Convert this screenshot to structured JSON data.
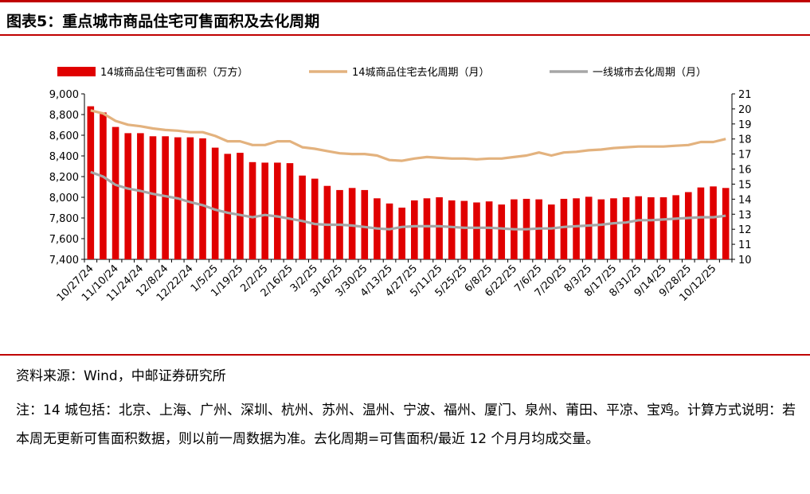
{
  "header": {
    "title": "图表5：重点城市商品住宅可售面积及去化周期"
  },
  "chart_data": {
    "type": "bar",
    "legend": {
      "placement": "top",
      "items": [
        "14城商品住宅可售面积（万方）",
        "14城商品住宅去化周期（月）",
        "一线城市去化周期（月）"
      ]
    },
    "categories": [
      "10/27/24",
      "11/3/24",
      "11/10/24",
      "11/17/24",
      "11/24/24",
      "12/1/24",
      "12/8/24",
      "12/15/24",
      "12/22/24",
      "12/29/24",
      "1/5/25",
      "1/12/25",
      "1/19/25",
      "1/26/25",
      "2/2/25",
      "2/9/25",
      "2/16/25",
      "2/23/25",
      "3/2/25",
      "3/9/25",
      "3/16/25",
      "3/23/25",
      "3/30/25",
      "4/6/25",
      "4/13/25",
      "4/20/25",
      "4/27/25",
      "5/4/25",
      "5/11/25",
      "5/18/25",
      "5/25/25",
      "6/1/25",
      "6/8/25",
      "6/15/25",
      "6/22/25",
      "6/29/25",
      "7/6/25",
      "7/13/25",
      "7/20/25",
      "7/27/25",
      "8/3/25",
      "8/10/25",
      "8/17/25",
      "8/24/25",
      "8/31/25",
      "9/7/25",
      "9/14/25",
      "9/21/25",
      "9/28/25",
      "10/5/25",
      "10/12/25",
      "10/19/25"
    ],
    "x_tick_labels": [
      "10/27/24",
      "11/10/24",
      "11/24/24",
      "12/8/24",
      "12/22/24",
      "1/5/25",
      "1/19/25",
      "2/2/25",
      "2/16/25",
      "3/2/25",
      "3/16/25",
      "3/30/25",
      "4/13/25",
      "4/27/25",
      "5/11/25",
      "5/25/25",
      "6/8/25",
      "6/22/25",
      "7/6/25",
      "7/20/25",
      "8/3/25",
      "8/17/25",
      "8/31/25",
      "9/14/25",
      "9/28/25",
      "10/12/25"
    ],
    "series": [
      {
        "name": "14城商品住宅可售面积（万方）",
        "type": "bar",
        "axis": "left",
        "color": "#E00000",
        "values": [
          8880,
          8820,
          8680,
          8620,
          8620,
          8590,
          8590,
          8580,
          8580,
          8570,
          8480,
          8420,
          8430,
          8340,
          8335,
          8335,
          8330,
          8210,
          8180,
          8110,
          8070,
          8090,
          8070,
          7990,
          7940,
          7900,
          7970,
          7990,
          8000,
          7970,
          7965,
          7950,
          7960,
          7930,
          7980,
          7985,
          7980,
          7930,
          7985,
          7990,
          8005,
          7980,
          7990,
          8000,
          8010,
          8000,
          8000,
          8020,
          8050,
          8095,
          8105,
          8090
        ]
      },
      {
        "name": "14城商品住宅去化周期（月）",
        "type": "line",
        "axis": "right",
        "color": "#E3B27E",
        "values": [
          19.9,
          19.7,
          19.2,
          18.95,
          18.85,
          18.7,
          18.6,
          18.55,
          18.45,
          18.45,
          18.2,
          17.85,
          17.85,
          17.6,
          17.6,
          17.85,
          17.85,
          17.45,
          17.35,
          17.2,
          17.05,
          17.0,
          17.0,
          16.9,
          16.6,
          16.55,
          16.7,
          16.8,
          16.75,
          16.7,
          16.7,
          16.65,
          16.7,
          16.7,
          16.8,
          16.9,
          17.1,
          16.9,
          17.1,
          17.15,
          17.25,
          17.3,
          17.4,
          17.45,
          17.5,
          17.5,
          17.5,
          17.55,
          17.6,
          17.8,
          17.8,
          18.0
        ]
      },
      {
        "name": "一线城市去化周期（月）",
        "type": "line",
        "axis": "right",
        "color": "#A6A6A6",
        "values": [
          15.8,
          15.5,
          14.95,
          14.7,
          14.55,
          14.35,
          14.2,
          14.05,
          13.8,
          13.6,
          13.3,
          13.1,
          12.95,
          12.8,
          12.95,
          12.85,
          12.7,
          12.55,
          12.35,
          12.3,
          12.3,
          12.25,
          12.15,
          12.05,
          12.0,
          12.15,
          12.2,
          12.2,
          12.2,
          12.15,
          12.1,
          12.1,
          12.1,
          12.05,
          12.0,
          12.0,
          12.05,
          12.05,
          12.15,
          12.2,
          12.25,
          12.3,
          12.4,
          12.45,
          12.6,
          12.6,
          12.65,
          12.7,
          12.75,
          12.8,
          12.8,
          12.9
        ]
      }
    ],
    "y_left": {
      "min": 7400,
      "max": 9000,
      "step": 200,
      "tick_labels": [
        "7,400",
        "7,600",
        "7,800",
        "8,000",
        "8,200",
        "8,400",
        "8,600",
        "8,800",
        "9,000"
      ]
    },
    "y_right": {
      "min": 10,
      "max": 21,
      "step": 1,
      "tick_labels": [
        "10",
        "11",
        "12",
        "13",
        "14",
        "15",
        "16",
        "17",
        "18",
        "19",
        "20",
        "21"
      ]
    },
    "grid": false
  },
  "footer": {
    "source": "资料来源：Wind，中邮证券研究所",
    "note": "注：14 城包括：北京、上海、广州、深圳、杭州、苏州、温州、宁波、福州、厦门、泉州、莆田、平凉、宝鸡。计算方式说明：若本周无更新可售面积数据，则以前一周数据为准。去化周期=可售面积/最近 12 个月月均成交量。"
  }
}
